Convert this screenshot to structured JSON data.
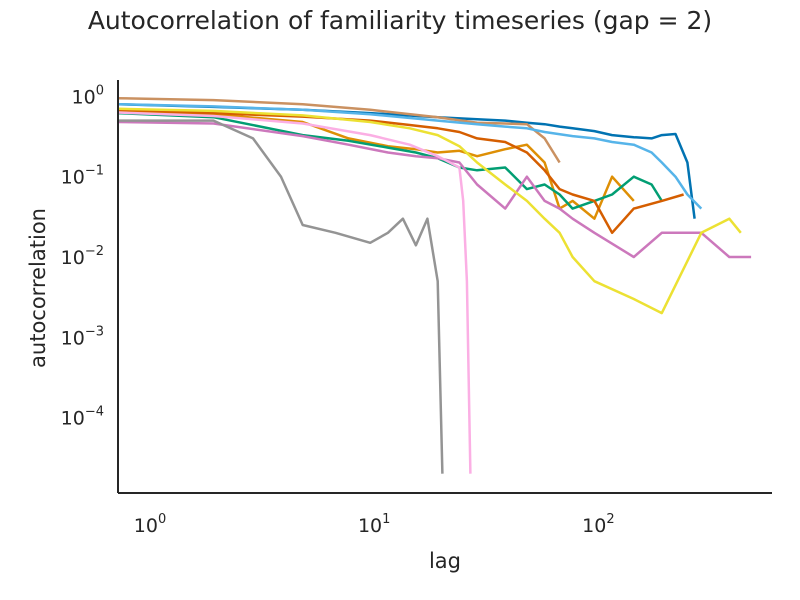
{
  "chart_data": {
    "type": "line",
    "title": "Autocorrelation of familiarity timeseries (gap = 2)",
    "xlabel": "lag",
    "ylabel": "autocorrelation",
    "xscale": "log",
    "yscale": "log",
    "xlim": [
      0.75,
      620
    ],
    "ylim": [
      1.15e-05,
      1.6
    ],
    "xticks": [
      {
        "base": "10",
        "exp": "0"
      },
      {
        "base": "10",
        "exp": "1"
      },
      {
        "base": "10",
        "exp": "2"
      }
    ],
    "xtick_values": [
      1,
      10,
      100
    ],
    "yticks": [
      {
        "base": "10",
        "exp": "0"
      },
      {
        "base": "10",
        "exp": "−1"
      },
      {
        "base": "10",
        "exp": "−2"
      },
      {
        "base": "10",
        "exp": "−3"
      },
      {
        "base": "10",
        "exp": "−4"
      }
    ],
    "ytick_values": [
      1,
      0.1,
      0.01,
      0.001,
      0.0001
    ],
    "grid": false,
    "legend": "none",
    "series": [
      {
        "color": "#0173b2",
        "x": [
          0.75,
          2,
          5,
          10,
          20,
          30,
          40,
          50,
          60,
          70,
          80,
          100,
          120,
          150,
          180,
          200,
          230,
          260,
          280
        ],
        "y": [
          0.8,
          0.74,
          0.68,
          0.62,
          0.55,
          0.52,
          0.5,
          0.47,
          0.45,
          0.42,
          0.4,
          0.37,
          0.33,
          0.31,
          0.3,
          0.33,
          0.34,
          0.15,
          0.03
        ]
      },
      {
        "color": "#de8f05",
        "x": [
          0.75,
          2,
          5,
          8,
          12,
          16,
          20,
          25,
          30,
          40,
          50,
          60,
          70,
          80,
          100,
          120,
          150
        ],
        "y": [
          0.66,
          0.6,
          0.48,
          0.3,
          0.24,
          0.22,
          0.2,
          0.21,
          0.18,
          0.22,
          0.25,
          0.15,
          0.04,
          0.05,
          0.03,
          0.1,
          0.05
        ]
      },
      {
        "color": "#029e73",
        "x": [
          0.75,
          2,
          5,
          8,
          12,
          16,
          20,
          25,
          30,
          40,
          50,
          60,
          70,
          80,
          100,
          120,
          150,
          180,
          200
        ],
        "y": [
          0.62,
          0.55,
          0.33,
          0.28,
          0.23,
          0.2,
          0.17,
          0.13,
          0.12,
          0.13,
          0.07,
          0.08,
          0.06,
          0.04,
          0.05,
          0.06,
          0.1,
          0.08,
          0.05
        ]
      },
      {
        "color": "#d55e00",
        "x": [
          0.75,
          2,
          5,
          10,
          15,
          20,
          25,
          30,
          40,
          50,
          60,
          70,
          80,
          100,
          120,
          150,
          200,
          250
        ],
        "y": [
          0.68,
          0.62,
          0.56,
          0.5,
          0.44,
          0.4,
          0.36,
          0.3,
          0.27,
          0.2,
          0.12,
          0.07,
          0.06,
          0.05,
          0.02,
          0.04,
          0.05,
          0.06
        ]
      },
      {
        "color": "#cc78bc",
        "x": [
          0.75,
          2,
          5,
          8,
          12,
          16,
          20,
          25,
          30,
          40,
          50,
          60,
          70,
          80,
          100,
          150,
          200,
          300,
          400,
          500
        ],
        "y": [
          0.48,
          0.46,
          0.32,
          0.25,
          0.2,
          0.18,
          0.17,
          0.15,
          0.08,
          0.04,
          0.1,
          0.05,
          0.04,
          0.03,
          0.02,
          0.01,
          0.02,
          0.02,
          0.01,
          0.01
        ]
      },
      {
        "color": "#ca9161",
        "x": [
          0.75,
          2,
          5,
          10,
          20,
          30,
          40,
          50,
          60,
          70
        ],
        "y": [
          0.95,
          0.9,
          0.8,
          0.68,
          0.55,
          0.47,
          0.46,
          0.45,
          0.3,
          0.15
        ]
      },
      {
        "color": "#fbafe4",
        "x": [
          0.75,
          2,
          5,
          10,
          15,
          20,
          25,
          26,
          27,
          28
        ],
        "y": [
          0.63,
          0.57,
          0.46,
          0.33,
          0.25,
          0.18,
          0.13,
          0.05,
          0.005,
          2e-05
        ]
      },
      {
        "color": "#949494",
        "x": [
          0.75,
          2,
          3,
          4,
          5,
          7,
          10,
          12,
          14,
          16,
          18,
          20,
          21
        ],
        "y": [
          0.5,
          0.5,
          0.3,
          0.1,
          0.025,
          0.02,
          0.015,
          0.02,
          0.03,
          0.014,
          0.03,
          0.005,
          2e-05
        ]
      },
      {
        "color": "#ece133",
        "x": [
          0.75,
          2,
          5,
          10,
          15,
          20,
          25,
          30,
          40,
          50,
          60,
          70,
          80,
          100,
          150,
          200,
          300,
          400,
          450
        ],
        "y": [
          0.7,
          0.66,
          0.58,
          0.48,
          0.4,
          0.33,
          0.24,
          0.15,
          0.08,
          0.05,
          0.03,
          0.02,
          0.01,
          0.005,
          0.003,
          0.002,
          0.02,
          0.03,
          0.02
        ]
      },
      {
        "color": "#56b4e9",
        "x": [
          0.75,
          2,
          5,
          10,
          20,
          30,
          40,
          50,
          60,
          80,
          100,
          120,
          150,
          180,
          200,
          230,
          260,
          300
        ],
        "y": [
          0.8,
          0.75,
          0.68,
          0.6,
          0.5,
          0.45,
          0.42,
          0.4,
          0.36,
          0.32,
          0.3,
          0.27,
          0.25,
          0.2,
          0.15,
          0.1,
          0.06,
          0.04
        ]
      }
    ]
  }
}
